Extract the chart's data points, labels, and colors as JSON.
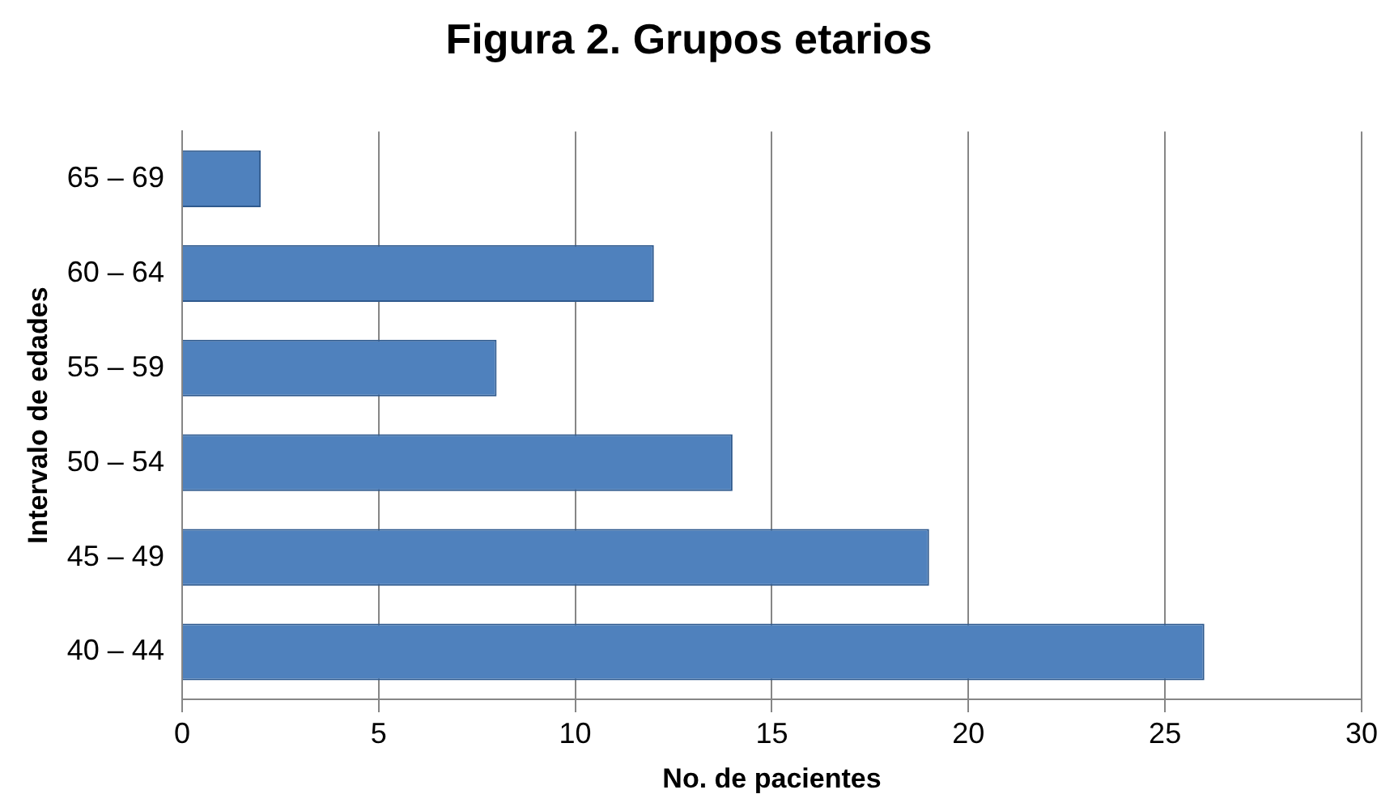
{
  "chart_data": {
    "type": "bar",
    "title": "Figura 2. Grupos etarios",
    "xlabel": "No. de pacientes",
    "ylabel": "Intervalo de edades",
    "orientation": "horizontal",
    "categories": [
      "65 – 69",
      "60 – 64",
      "55 – 59",
      "50 – 54",
      "45 – 49",
      "40 – 44"
    ],
    "values": [
      2,
      12,
      8,
      14,
      19,
      26
    ],
    "color": "#4f81bd",
    "xlim": [
      0,
      30
    ],
    "xticks": [
      0,
      5,
      10,
      15,
      20,
      25,
      30
    ],
    "grid": "x",
    "legend": false
  }
}
